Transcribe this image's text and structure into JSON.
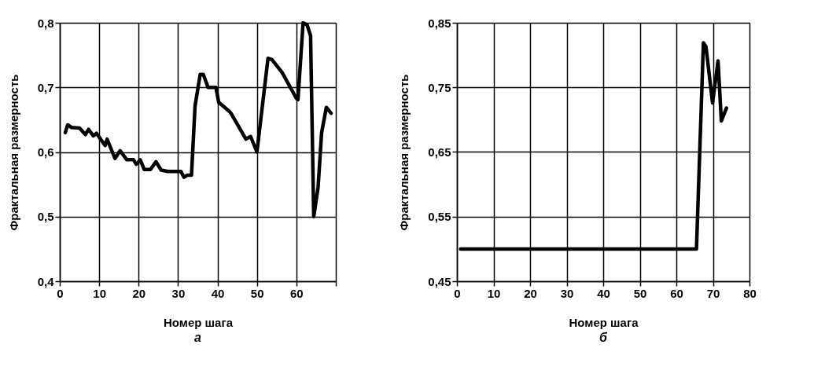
{
  "chart_data": [
    {
      "type": "line",
      "title": "а",
      "xlabel": "Номер шага",
      "ylabel": "Фрактальная размерность",
      "color": "#000000",
      "x": [
        1.4,
        2,
        3,
        5,
        6.5,
        7.3,
        8.5,
        9.3,
        11.5,
        12,
        14,
        15.3,
        17,
        18.7,
        19.4,
        20.4,
        21.4,
        23,
        24.4,
        25.7,
        27.4,
        30.7,
        31.5,
        32.3,
        33.4,
        34.3,
        35.6,
        36.4,
        37.6,
        39.6,
        40.3,
        43,
        43.5,
        47.2,
        48.4,
        50,
        52.8,
        53.8,
        56.4,
        60,
        60.4,
        61.7,
        62.7,
        63.6,
        64.4,
        65.5,
        66.4,
        67.6,
        68.8
      ],
      "values": [
        0.63,
        0.642,
        0.638,
        0.637,
        0.627,
        0.635,
        0.625,
        0.629,
        0.61,
        0.62,
        0.59,
        0.602,
        0.588,
        0.588,
        0.581,
        0.588,
        0.573,
        0.573,
        0.585,
        0.572,
        0.57,
        0.57,
        0.561,
        0.564,
        0.564,
        0.671,
        0.72,
        0.72,
        0.7,
        0.7,
        0.677,
        0.663,
        0.659,
        0.62,
        0.624,
        0.6,
        0.745,
        0.743,
        0.723,
        0.683,
        0.681,
        0.8,
        0.797,
        0.78,
        0.5,
        0.545,
        0.63,
        0.669,
        0.66
      ],
      "xlim": [
        0,
        70
      ],
      "xticks": [
        0,
        10,
        20,
        30,
        40,
        50,
        60,
        {
          "value": 70,
          "label": null
        }
      ],
      "ylim": [
        0.4,
        0.8
      ],
      "yticks": [
        {
          "value": 0.4,
          "label": "0,4"
        },
        {
          "value": 0.5,
          "label": "0,5"
        },
        {
          "value": 0.6,
          "label": "0,6"
        },
        {
          "value": 0.7,
          "label": "0,7"
        },
        {
          "value": 0.8,
          "label": "0,8"
        }
      ],
      "grid": true
    },
    {
      "type": "line",
      "title": "б",
      "xlabel": "Номер шага",
      "ylabel": "Фрактальная размерность",
      "color": "#000000",
      "x": [
        1,
        65,
        65.5,
        67.4,
        68.1,
        69.9,
        71.4,
        72.3,
        73.7
      ],
      "values": [
        0.5,
        0.5,
        0.5,
        0.819,
        0.813,
        0.726,
        0.791,
        0.698,
        0.718
      ],
      "xlim": [
        0,
        80
      ],
      "xticks": [
        0,
        10,
        20,
        30,
        40,
        50,
        60,
        70,
        80
      ],
      "ylim": [
        0.45,
        0.85
      ],
      "yticks": [
        {
          "value": 0.45,
          "label": "0,45"
        },
        {
          "value": 0.55,
          "label": "0,55"
        },
        {
          "value": 0.65,
          "label": "0,65"
        },
        {
          "value": 0.75,
          "label": "0,75"
        },
        {
          "value": 0.85,
          "label": "0,85"
        }
      ],
      "grid": true
    }
  ]
}
